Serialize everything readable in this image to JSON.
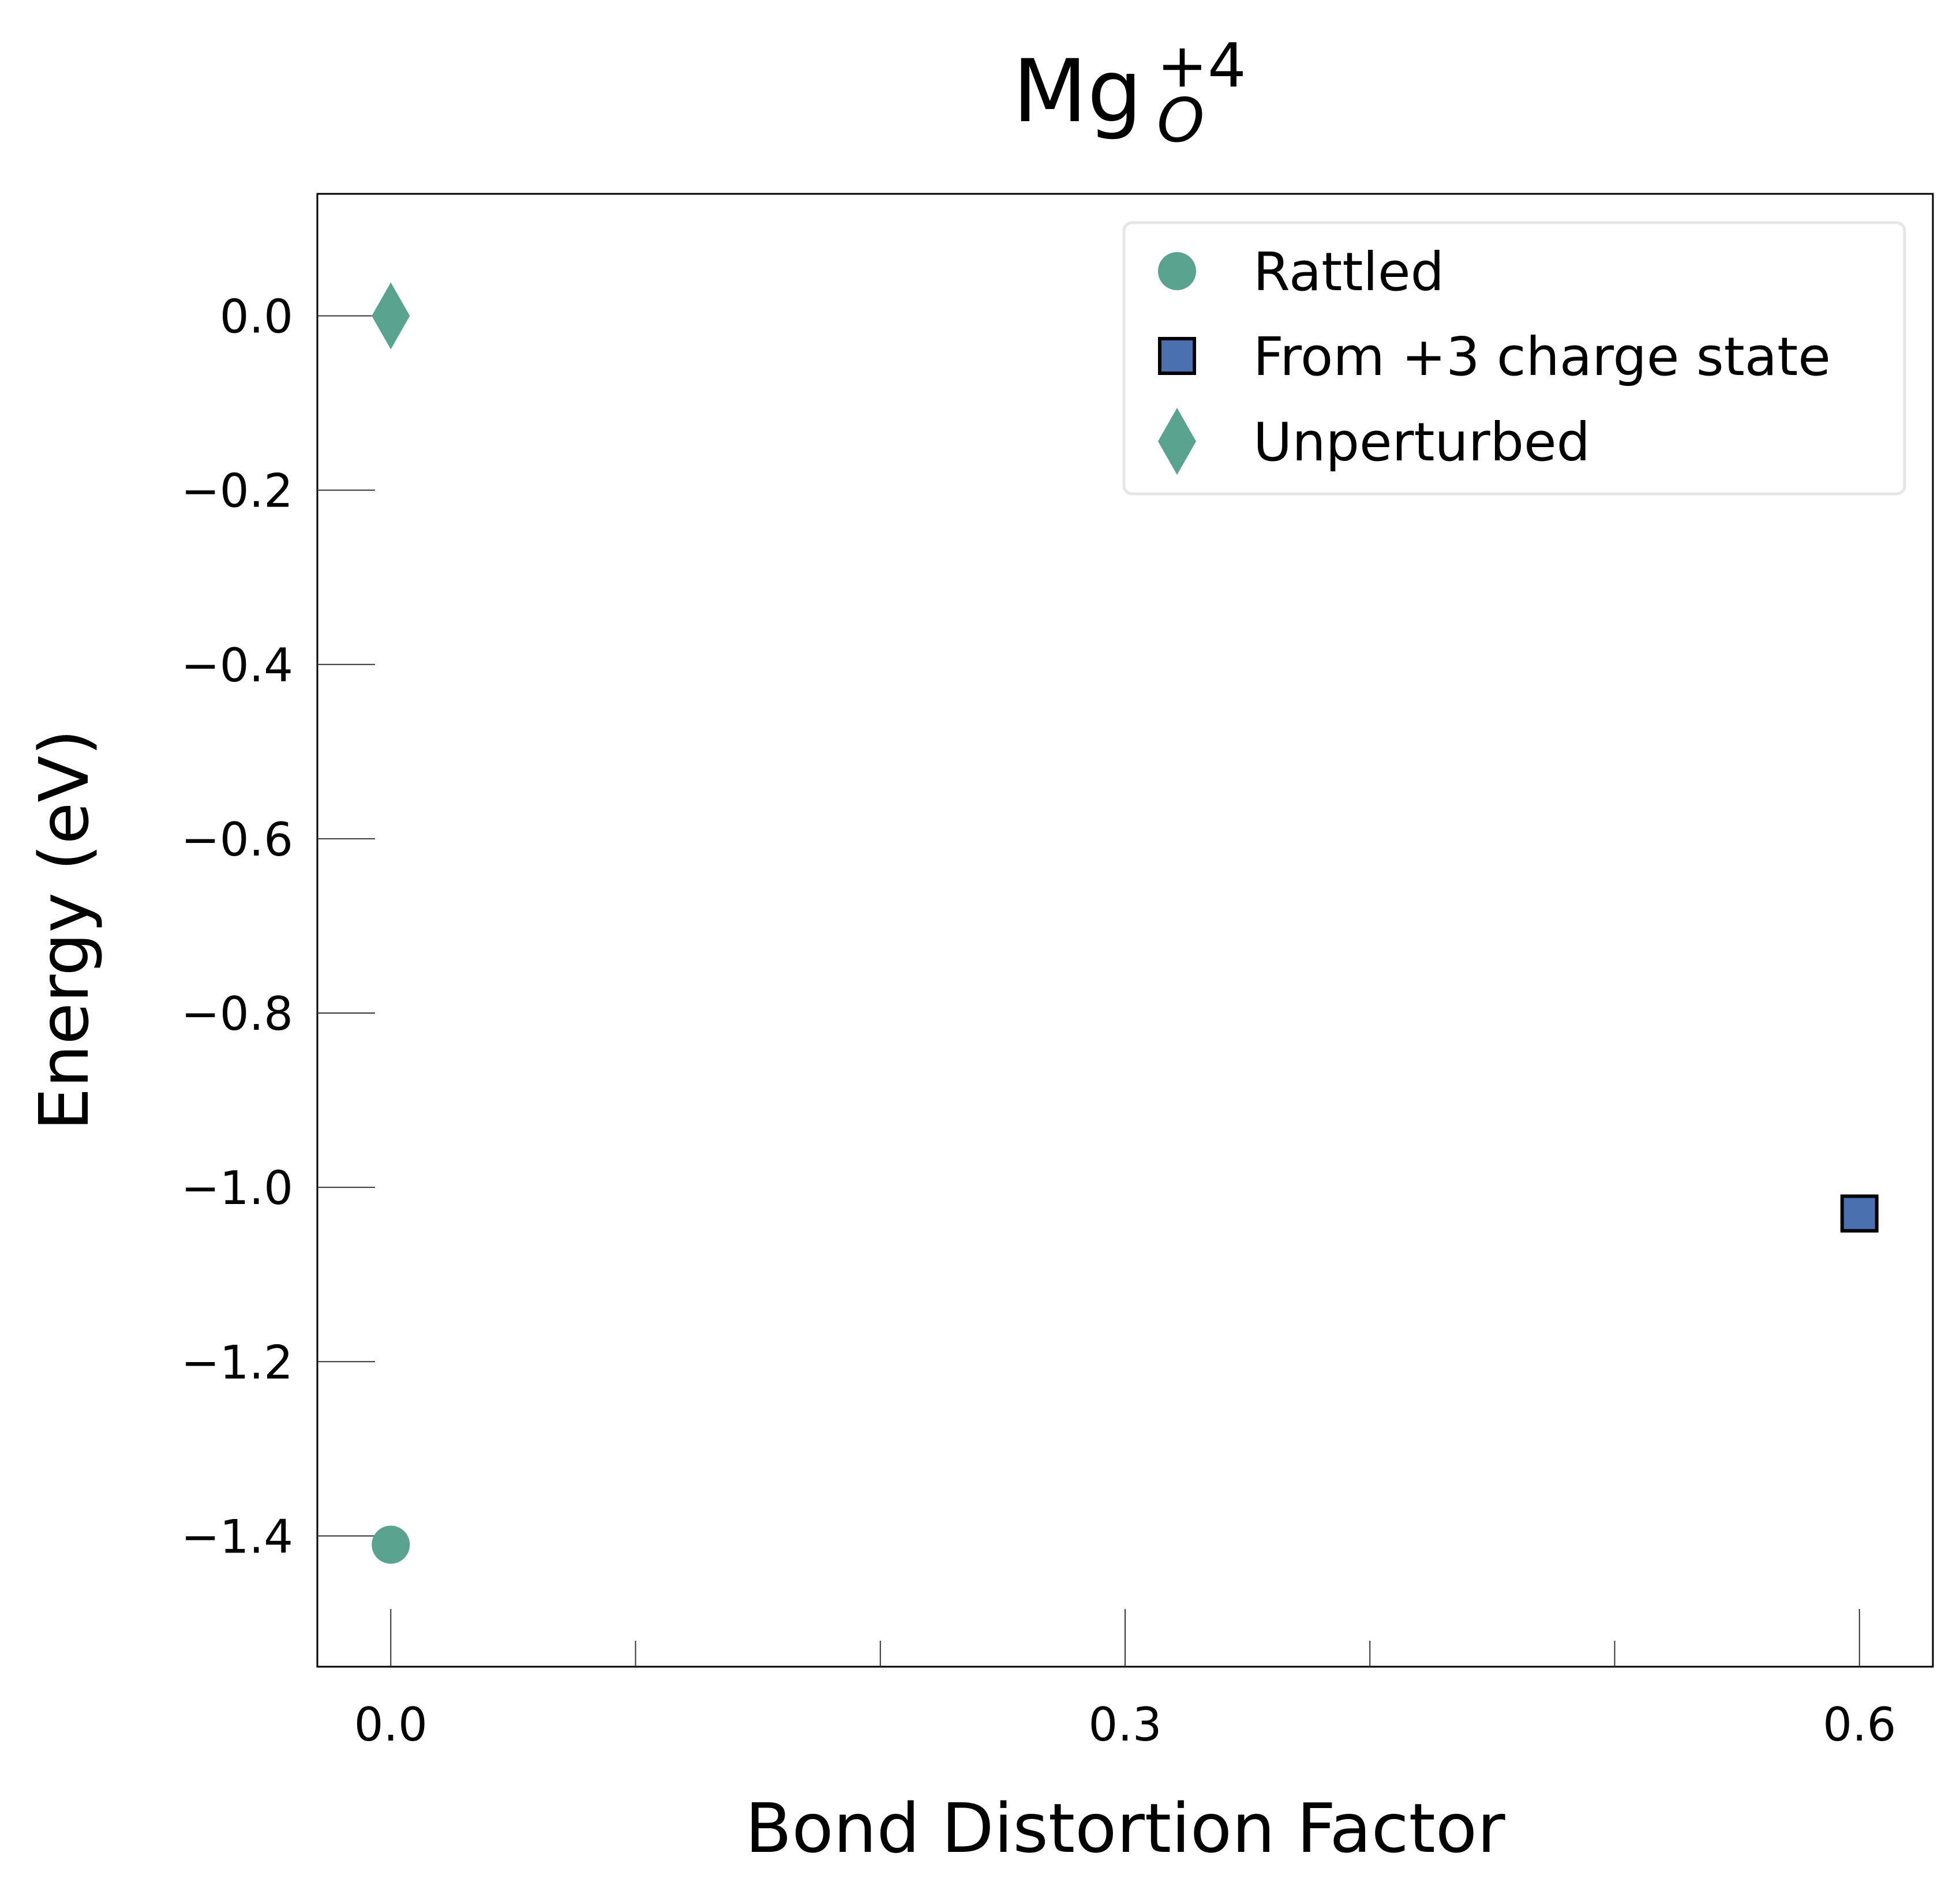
{
  "chart_data": {
    "type": "scatter",
    "title": {
      "base": "Mg",
      "subscript": "O",
      "superscript": "+4"
    },
    "xlabel": "Bond Distortion Factor",
    "ylabel": "Energy (eV)",
    "xlim": [
      -0.03,
      0.63
    ],
    "ylim": [
      -1.55,
      0.14
    ],
    "x_ticks": [
      {
        "value": 0.0,
        "label": "0.0"
      },
      {
        "value": 0.3,
        "label": "0.3"
      },
      {
        "value": 0.6,
        "label": "0.6"
      }
    ],
    "x_minor_ticks": [
      0.1,
      0.2,
      0.4,
      0.5
    ],
    "y_ticks": [
      {
        "value": 0.0,
        "label": "0.0"
      },
      {
        "value": -0.2,
        "label": "−0.2"
      },
      {
        "value": -0.4,
        "label": "−0.4"
      },
      {
        "value": -0.6,
        "label": "−0.6"
      },
      {
        "value": -0.8,
        "label": "−0.8"
      },
      {
        "value": -1.0,
        "label": "−1.0"
      },
      {
        "value": -1.2,
        "label": "−1.2"
      },
      {
        "value": -1.4,
        "label": "−1.4"
      }
    ],
    "grid": false,
    "legend_position": "top-right",
    "series": [
      {
        "name": "Rattled",
        "marker": "circle",
        "color": "#5aa38f",
        "points": [
          {
            "x": 0.0,
            "y": -1.41
          }
        ]
      },
      {
        "name": "From +3 charge state",
        "marker": "square",
        "color": "#4a70b0",
        "edge_color": "#000000",
        "points": [
          {
            "x": 0.6,
            "y": -1.03
          }
        ]
      },
      {
        "name": "Unperturbed",
        "marker": "diamond",
        "color": "#5aa38f",
        "points": [
          {
            "x": 0.0,
            "y": 0.0
          }
        ]
      }
    ]
  }
}
